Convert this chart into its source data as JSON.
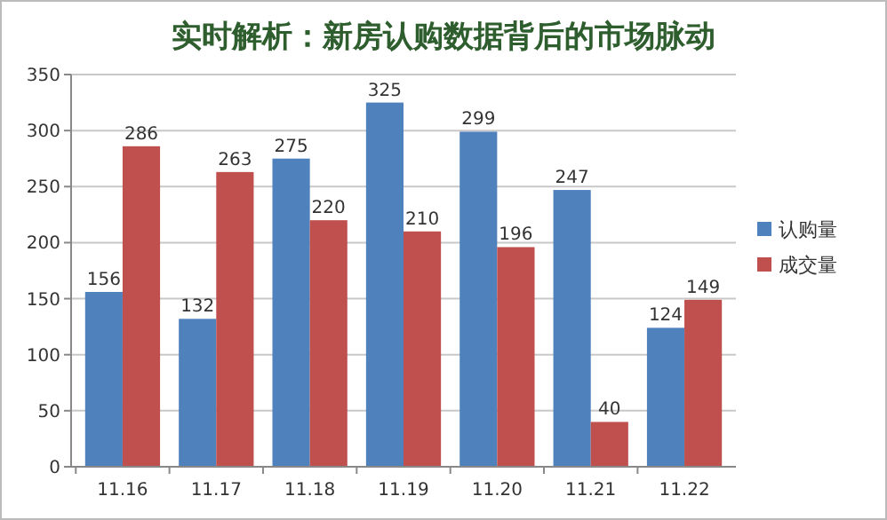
{
  "chart_data": {
    "type": "bar",
    "title": "实时解析：新房认购数据背后的市场脉动",
    "categories": [
      "11.16",
      "11.17",
      "11.18",
      "11.19",
      "11.20",
      "11.21",
      "11.22"
    ],
    "series": [
      {
        "name": "认购量",
        "color": "#4f81bd",
        "values": [
          156,
          132,
          275,
          325,
          299,
          247,
          124
        ]
      },
      {
        "name": "成交量",
        "color": "#c0504d",
        "values": [
          286,
          263,
          220,
          210,
          196,
          40,
          149
        ]
      }
    ],
    "ylim": [
      0,
      350
    ],
    "yticks": [
      0,
      50,
      100,
      150,
      200,
      250,
      300,
      350
    ],
    "grid": "y",
    "legend": "right",
    "data_labels": true
  }
}
